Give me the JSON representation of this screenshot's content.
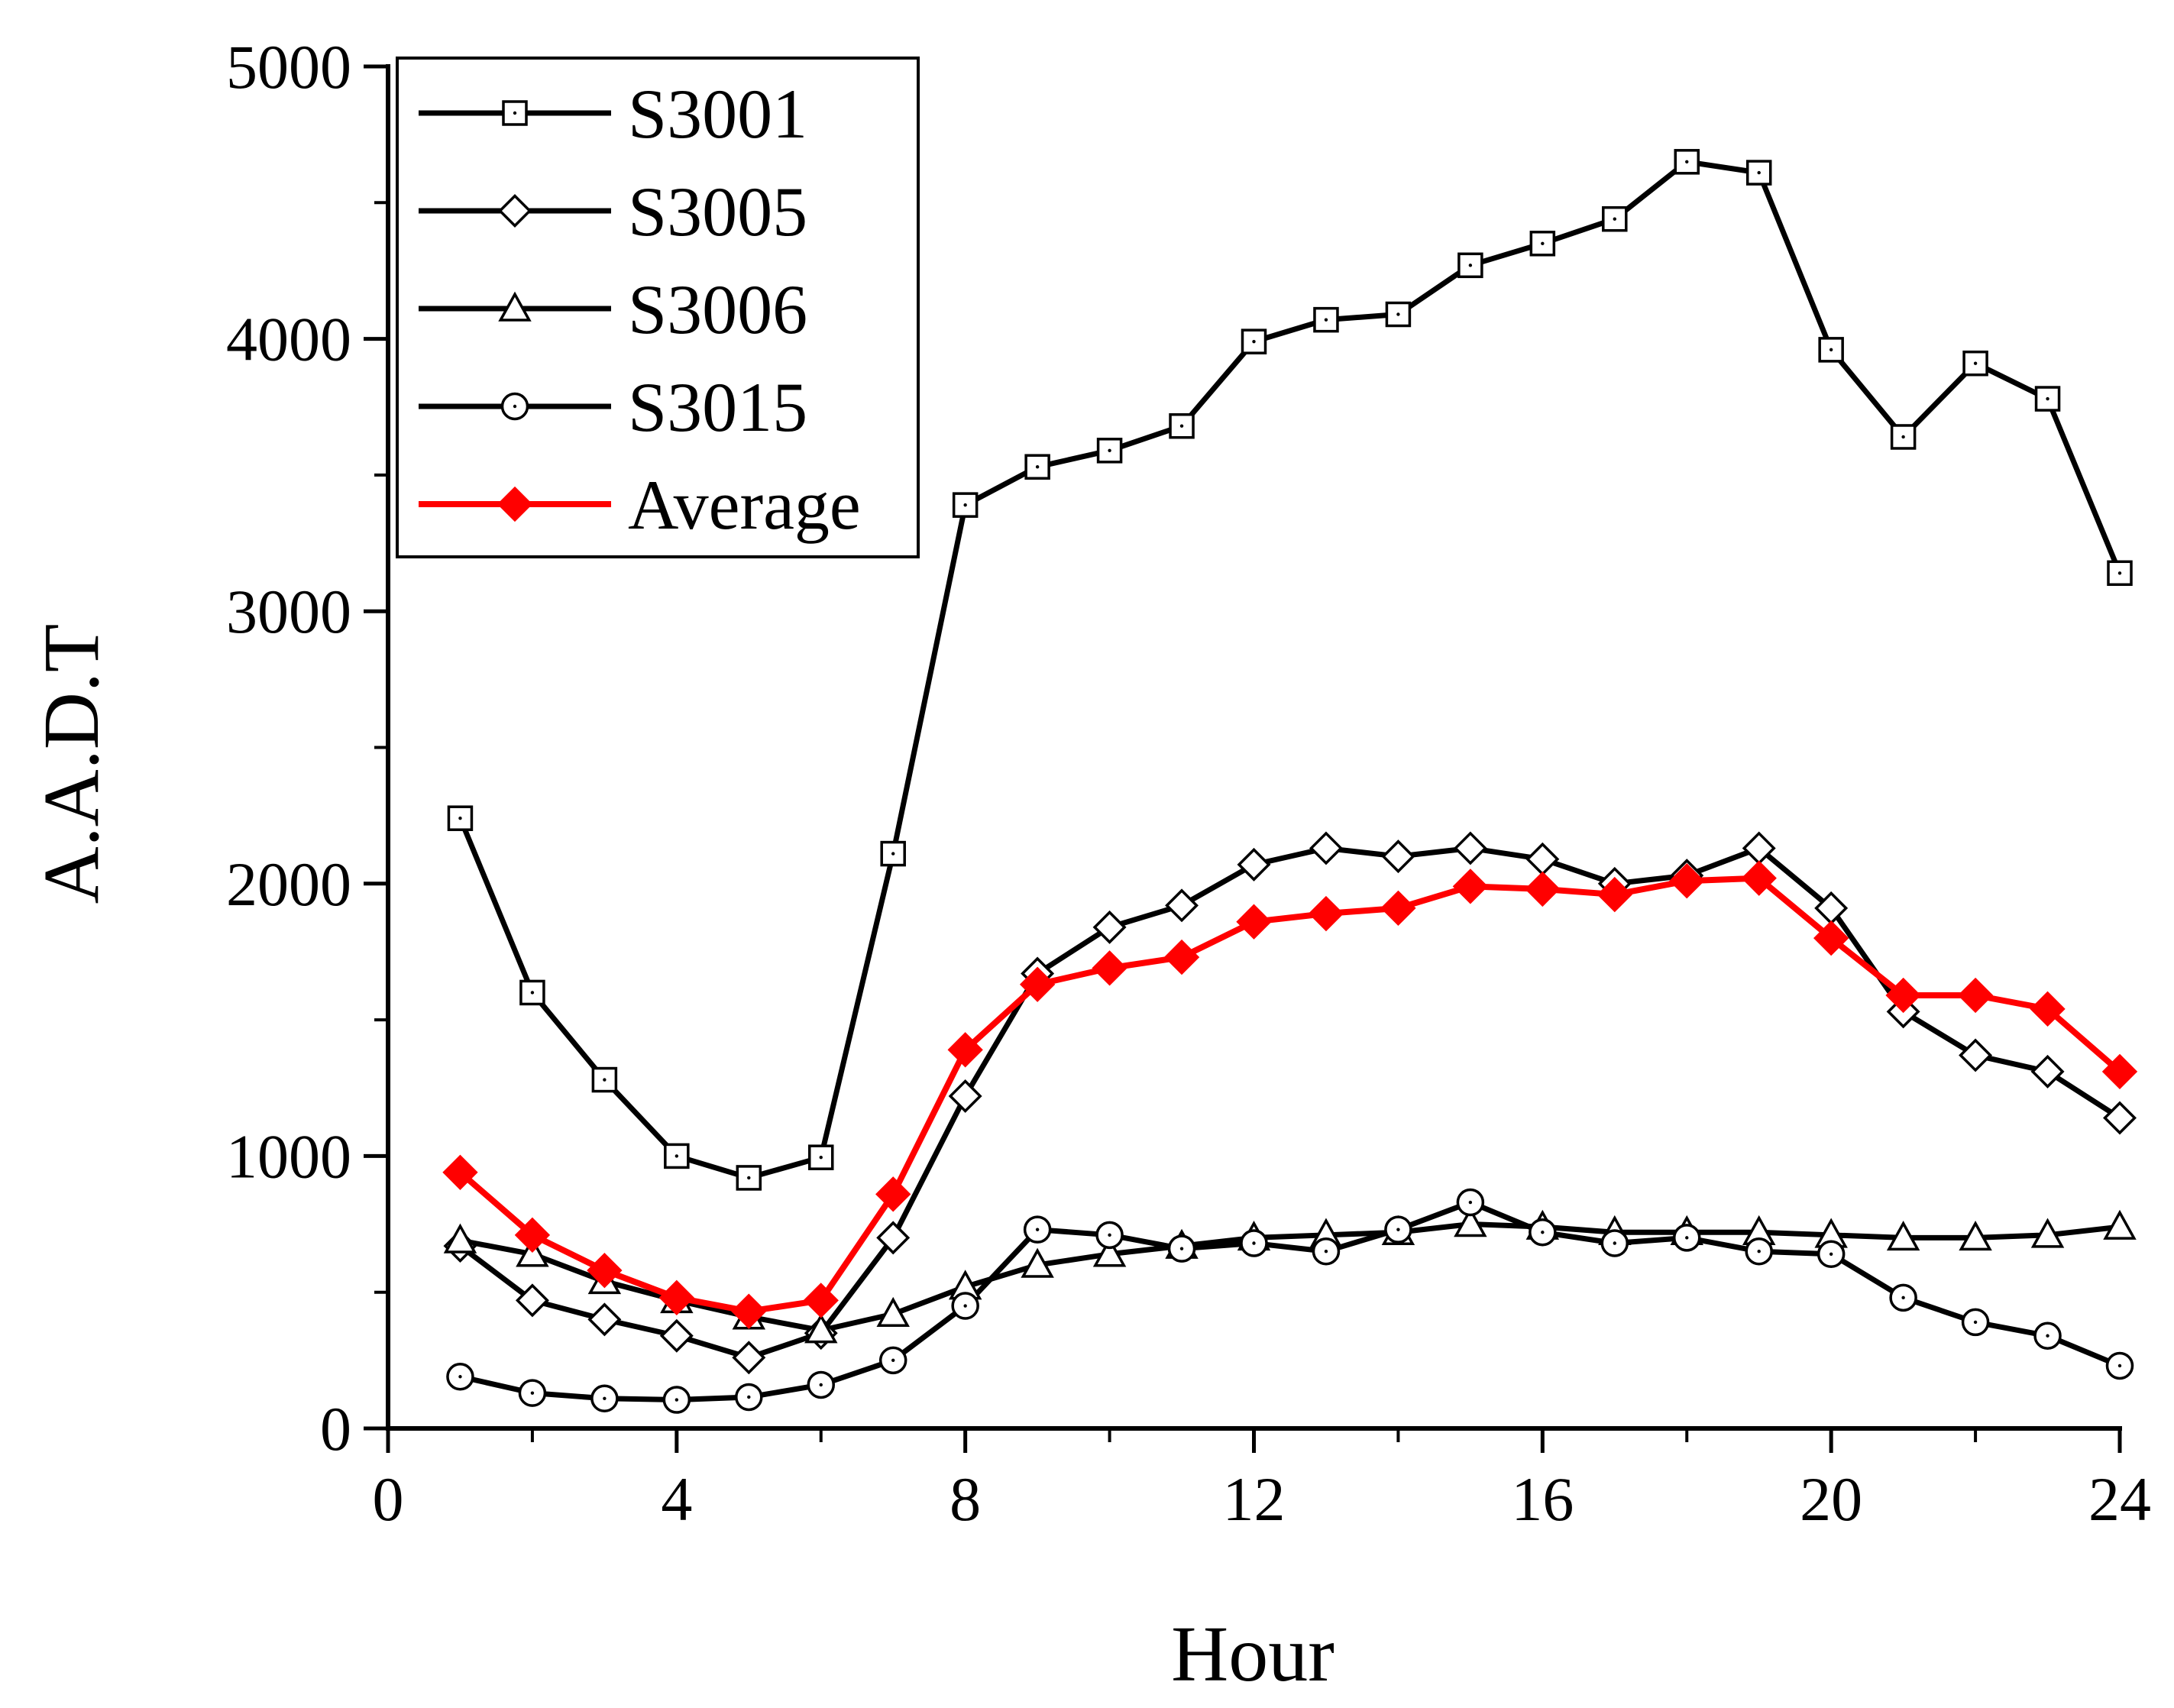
{
  "chart_data": {
    "type": "line",
    "title": "",
    "xlabel": "Hour",
    "ylabel": "A.A.D.T",
    "xlim": [
      0,
      24
    ],
    "ylim": [
      0,
      5000
    ],
    "xticks": [
      0,
      4,
      8,
      12,
      16,
      20,
      24
    ],
    "yticks": [
      0,
      1000,
      2000,
      3000,
      4000,
      5000
    ],
    "grid": false,
    "legend_position": "top-left",
    "x": [
      1,
      2,
      3,
      4,
      5,
      6,
      7,
      8,
      9,
      10,
      11,
      12,
      13,
      14,
      15,
      16,
      17,
      18,
      19,
      20,
      21,
      22,
      23,
      24
    ],
    "series": [
      {
        "name": "S3001",
        "marker": "square",
        "color": "#000000",
        "values": [
          2240,
          1600,
          1280,
          1000,
          920,
          995,
          2110,
          3390,
          3530,
          3590,
          3680,
          3990,
          4070,
          4090,
          4270,
          4350,
          4440,
          4650,
          4610,
          3960,
          3640,
          3910,
          3780,
          3140
        ]
      },
      {
        "name": "S3005",
        "marker": "diamond",
        "color": "#000000",
        "values": [
          670,
          470,
          400,
          340,
          260,
          350,
          700,
          1220,
          1670,
          1840,
          1920,
          2070,
          2130,
          2100,
          2130,
          2090,
          2000,
          2030,
          2130,
          1910,
          1530,
          1370,
          1310,
          1140
        ]
      },
      {
        "name": "S3006",
        "marker": "triangle",
        "color": "#000000",
        "values": [
          690,
          640,
          540,
          470,
          410,
          360,
          420,
          520,
          600,
          640,
          670,
          700,
          710,
          720,
          750,
          740,
          720,
          720,
          720,
          710,
          700,
          700,
          710,
          740
        ]
      },
      {
        "name": "S3015",
        "marker": "circle",
        "color": "#000000",
        "values": [
          190,
          130,
          110,
          105,
          115,
          160,
          250,
          450,
          730,
          710,
          660,
          680,
          650,
          730,
          830,
          720,
          680,
          700,
          650,
          640,
          480,
          390,
          340,
          230
        ]
      },
      {
        "name": "Average",
        "marker": "filled-diamond",
        "color": "#ff0000",
        "values": [
          940,
          710,
          580,
          480,
          430,
          470,
          860,
          1390,
          1630,
          1690,
          1730,
          1860,
          1890,
          1910,
          1990,
          1980,
          1960,
          2010,
          2020,
          1800,
          1590,
          1590,
          1540,
          1310
        ]
      }
    ]
  }
}
